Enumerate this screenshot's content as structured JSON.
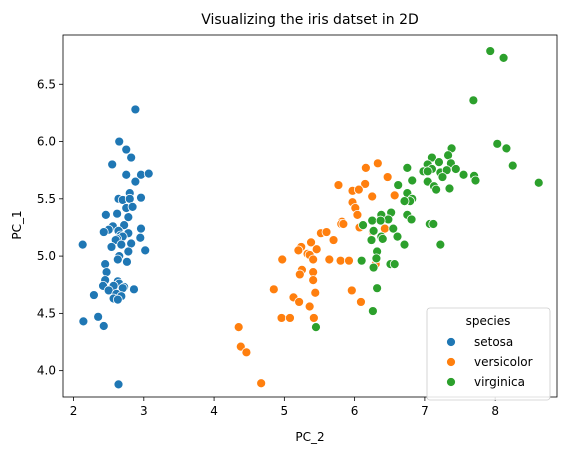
{
  "chart_data": {
    "type": "scatter",
    "title": "Visualizing the iris datset in 2D",
    "xlabel": "PC_2",
    "ylabel": "PC_1",
    "xlim": [
      1.85,
      8.88
    ],
    "ylim": [
      3.77,
      6.93
    ],
    "x_ticks": [
      2,
      3,
      4,
      5,
      6,
      7,
      8
    ],
    "y_ticks": [
      4.0,
      4.5,
      5.0,
      5.5,
      6.0,
      6.5
    ],
    "y_tick_labels": [
      "4.0",
      "4.5",
      "5.0",
      "5.5",
      "6.0",
      "6.5"
    ],
    "grid": false,
    "legend": {
      "title": "species",
      "placement": "lower-right"
    },
    "series": [
      {
        "name": "setosa",
        "color": "#1f77b4",
        "points": [
          [
            2.88,
            6.28
          ],
          [
            2.65,
            6.0
          ],
          [
            2.75,
            5.93
          ],
          [
            2.82,
            5.86
          ],
          [
            2.55,
            5.8
          ],
          [
            2.75,
            5.71
          ],
          [
            2.96,
            5.71
          ],
          [
            3.07,
            5.72
          ],
          [
            2.88,
            5.65
          ],
          [
            2.8,
            5.55
          ],
          [
            2.64,
            5.5
          ],
          [
            2.7,
            5.49
          ],
          [
            2.8,
            5.5
          ],
          [
            2.96,
            5.51
          ],
          [
            2.75,
            5.42
          ],
          [
            2.84,
            5.43
          ],
          [
            2.46,
            5.36
          ],
          [
            2.62,
            5.37
          ],
          [
            2.78,
            5.34
          ],
          [
            2.56,
            5.26
          ],
          [
            2.72,
            5.27
          ],
          [
            2.5,
            5.23
          ],
          [
            2.43,
            5.21
          ],
          [
            2.64,
            5.22
          ],
          [
            2.96,
            5.24
          ],
          [
            2.78,
            5.2
          ],
          [
            2.67,
            5.18
          ],
          [
            2.7,
            5.17
          ],
          [
            2.62,
            5.15
          ],
          [
            2.6,
            5.14
          ],
          [
            2.95,
            5.16
          ],
          [
            2.82,
            5.11
          ],
          [
            2.68,
            5.1
          ],
          [
            2.13,
            5.1
          ],
          [
            2.54,
            5.08
          ],
          [
            3.02,
            5.05
          ],
          [
            2.78,
            5.04
          ],
          [
            2.65,
            5.0
          ],
          [
            2.63,
            4.97
          ],
          [
            2.45,
            4.93
          ],
          [
            2.76,
            4.95
          ],
          [
            2.47,
            4.86
          ],
          [
            2.45,
            4.79
          ],
          [
            2.63,
            4.78
          ],
          [
            2.65,
            4.76
          ],
          [
            2.57,
            4.74
          ],
          [
            2.72,
            4.73
          ],
          [
            2.42,
            4.74
          ],
          [
            2.7,
            4.72
          ],
          [
            2.86,
            4.71
          ],
          [
            2.5,
            4.7
          ],
          [
            2.61,
            4.67
          ],
          [
            2.29,
            4.66
          ],
          [
            2.68,
            4.65
          ],
          [
            2.57,
            4.63
          ],
          [
            2.63,
            4.62
          ],
          [
            2.14,
            4.43
          ],
          [
            2.35,
            4.47
          ],
          [
            2.43,
            4.39
          ],
          [
            2.64,
            3.88
          ]
        ]
      },
      {
        "name": "versicolor",
        "color": "#ff7f0e",
        "points": [
          [
            6.33,
            5.81
          ],
          [
            6.16,
            5.77
          ],
          [
            6.47,
            5.69
          ],
          [
            5.77,
            5.62
          ],
          [
            6.15,
            5.63
          ],
          [
            5.97,
            5.57
          ],
          [
            6.06,
            5.58
          ],
          [
            6.57,
            5.53
          ],
          [
            6.25,
            5.52
          ],
          [
            5.97,
            5.47
          ],
          [
            6.01,
            5.42
          ],
          [
            6.04,
            5.36
          ],
          [
            5.82,
            5.3
          ],
          [
            5.52,
            5.2
          ],
          [
            5.6,
            5.21
          ],
          [
            5.81,
            5.28
          ],
          [
            5.84,
            5.28
          ],
          [
            6.07,
            5.25
          ],
          [
            6.43,
            5.24
          ],
          [
            6.26,
            5.21
          ],
          [
            5.7,
            5.14
          ],
          [
            5.24,
            5.08
          ],
          [
            5.38,
            5.12
          ],
          [
            5.46,
            5.06
          ],
          [
            5.2,
            5.05
          ],
          [
            5.33,
            5.02
          ],
          [
            5.36,
            5.01
          ],
          [
            5.41,
            4.97
          ],
          [
            5.64,
            4.97
          ],
          [
            4.97,
            4.97
          ],
          [
            5.8,
            4.96
          ],
          [
            5.92,
            4.96
          ],
          [
            6.3,
            4.93
          ],
          [
            5.25,
            4.88
          ],
          [
            5.41,
            4.86
          ],
          [
            5.41,
            4.79
          ],
          [
            5.22,
            4.84
          ],
          [
            4.85,
            4.71
          ],
          [
            5.13,
            4.64
          ],
          [
            5.44,
            4.68
          ],
          [
            5.21,
            4.6
          ],
          [
            5.36,
            4.56
          ],
          [
            5.96,
            4.7
          ],
          [
            6.09,
            4.6
          ],
          [
            4.96,
            4.46
          ],
          [
            5.08,
            4.46
          ],
          [
            5.42,
            4.46
          ],
          [
            4.35,
            4.38
          ],
          [
            4.38,
            4.21
          ],
          [
            4.46,
            4.16
          ],
          [
            4.67,
            3.89
          ]
        ]
      },
      {
        "name": "virginica",
        "color": "#2ca02c",
        "points": [
          [
            7.93,
            6.79
          ],
          [
            8.12,
            6.73
          ],
          [
            7.69,
            6.36
          ],
          [
            8.03,
            5.98
          ],
          [
            8.16,
            5.94
          ],
          [
            7.38,
            5.94
          ],
          [
            7.33,
            5.88
          ],
          [
            7.1,
            5.86
          ],
          [
            7.2,
            5.82
          ],
          [
            7.04,
            5.8
          ],
          [
            7.37,
            5.81
          ],
          [
            8.25,
            5.79
          ],
          [
            6.98,
            5.74
          ],
          [
            7.22,
            5.73
          ],
          [
            7.31,
            5.75
          ],
          [
            7.44,
            5.76
          ],
          [
            7.1,
            5.76
          ],
          [
            6.75,
            5.77
          ],
          [
            7.04,
            5.74
          ],
          [
            7.25,
            5.69
          ],
          [
            7.7,
            5.7
          ],
          [
            7.55,
            5.71
          ],
          [
            7.72,
            5.66
          ],
          [
            7.04,
            5.65
          ],
          [
            6.82,
            5.66
          ],
          [
            8.62,
            5.64
          ],
          [
            6.62,
            5.62
          ],
          [
            7.13,
            5.61
          ],
          [
            7.35,
            5.59
          ],
          [
            7.16,
            5.58
          ],
          [
            6.75,
            5.55
          ],
          [
            6.82,
            5.5
          ],
          [
            6.79,
            5.48
          ],
          [
            6.71,
            5.48
          ],
          [
            6.75,
            5.36
          ],
          [
            6.38,
            5.36
          ],
          [
            6.52,
            5.38
          ],
          [
            6.48,
            5.32
          ],
          [
            6.81,
            5.32
          ],
          [
            6.12,
            5.27
          ],
          [
            6.25,
            5.31
          ],
          [
            6.37,
            5.31
          ],
          [
            6.55,
            5.24
          ],
          [
            6.27,
            5.22
          ],
          [
            6.38,
            5.17
          ],
          [
            6.4,
            5.15
          ],
          [
            6.61,
            5.17
          ],
          [
            7.07,
            5.28
          ],
          [
            7.12,
            5.28
          ],
          [
            6.24,
            5.14
          ],
          [
            6.71,
            5.1
          ],
          [
            6.32,
            5.04
          ],
          [
            7.22,
            5.1
          ],
          [
            6.31,
            4.98
          ],
          [
            6.1,
            4.96
          ],
          [
            6.27,
            4.9
          ],
          [
            6.51,
            4.93
          ],
          [
            6.57,
            4.93
          ],
          [
            6.32,
            4.72
          ],
          [
            6.26,
            4.52
          ],
          [
            5.45,
            4.38
          ]
        ]
      }
    ]
  }
}
